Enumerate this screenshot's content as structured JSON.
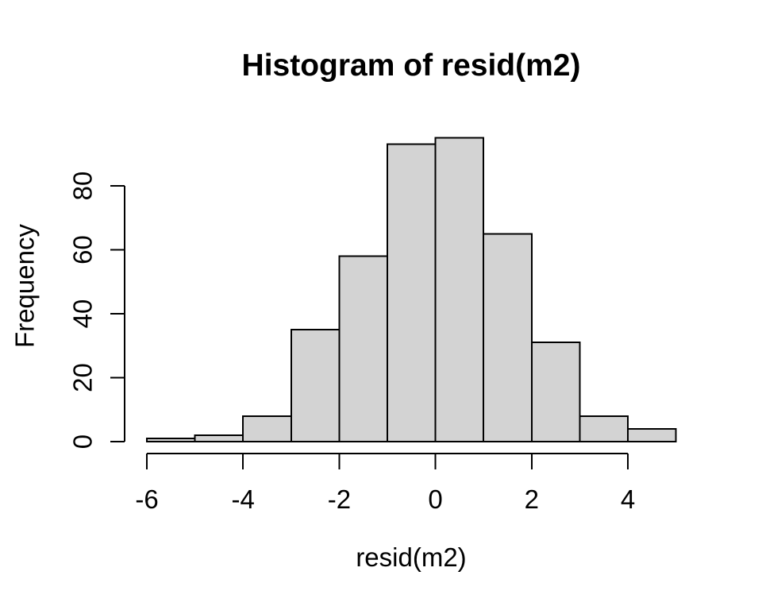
{
  "chart_data": {
    "type": "bar",
    "subtype": "histogram",
    "title": "Histogram of resid(m2)",
    "xlabel": "resid(m2)",
    "ylabel": "Frequency",
    "bin_edges": [
      -6,
      -5,
      -4,
      -3,
      -2,
      -1,
      0,
      1,
      2,
      3,
      4,
      5
    ],
    "counts": [
      1,
      2,
      8,
      35,
      58,
      93,
      95,
      65,
      31,
      8,
      4
    ],
    "x_ticks": [
      -6,
      -4,
      -2,
      0,
      2,
      4
    ],
    "x_tick_labels": [
      "-6",
      "-4",
      "-2",
      "0",
      "2",
      "4"
    ],
    "y_ticks": [
      0,
      20,
      40,
      60,
      80
    ],
    "y_tick_labels": [
      "0",
      "20",
      "40",
      "60",
      "80"
    ],
    "xlim": [
      -6,
      5
    ],
    "ylim": [
      0,
      95
    ],
    "grid": false,
    "legend": null,
    "colors": {
      "bar_fill": "#d3d3d3",
      "bar_stroke": "#000000",
      "axis": "#000000",
      "text": "#000000",
      "background": "#ffffff"
    }
  }
}
